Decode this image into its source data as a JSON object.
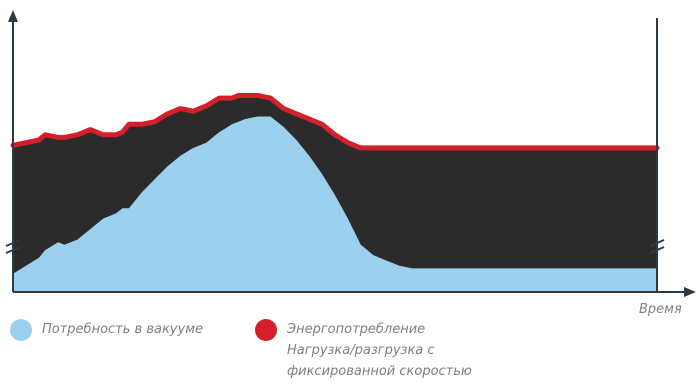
{
  "chart_data": {
    "type": "area",
    "title": "",
    "xlabel": "Время",
    "ylabel": "",
    "x": [
      0,
      2,
      4,
      5,
      7,
      8,
      10,
      12,
      14,
      16,
      17,
      18,
      20,
      22,
      24,
      26,
      28,
      30,
      32,
      34,
      35,
      36,
      38,
      40,
      42,
      44,
      46,
      48,
      50,
      52,
      54,
      56,
      58,
      60,
      62,
      64,
      66,
      68,
      70,
      72,
      74,
      76,
      78,
      80,
      82,
      84,
      86,
      88,
      90,
      92,
      94,
      96,
      98,
      100
    ],
    "xlim": [
      0,
      100
    ],
    "ylim": [
      0,
      100
    ],
    "axis_breaks": true,
    "series": [
      {
        "name": "Энергопотребление",
        "color": "#d3202a",
        "values": [
          56,
          57,
          58,
          60,
          59,
          59,
          60,
          62,
          60,
          60,
          61,
          64,
          64,
          65,
          68,
          70,
          69,
          71,
          74,
          74,
          75,
          75,
          75,
          74,
          70,
          68,
          66,
          64,
          60,
          57,
          55,
          55,
          55,
          55,
          55,
          55,
          55,
          55,
          55,
          55,
          55,
          55,
          55,
          55,
          55,
          55,
          55,
          55,
          55,
          55,
          55,
          55,
          55,
          55
        ]
      },
      {
        "name": "Потребность в вакууме",
        "color": "#9bd1ee",
        "values": [
          7,
          10,
          13,
          16,
          19,
          18,
          20,
          24,
          28,
          30,
          32,
          32,
          38,
          43,
          48,
          52,
          55,
          57,
          61,
          64,
          65,
          66,
          67,
          67,
          63,
          58,
          52,
          45,
          37,
          28,
          18,
          14,
          12,
          10,
          9,
          9,
          9,
          9,
          9,
          9,
          9,
          9,
          9,
          9,
          9,
          9,
          9,
          9,
          9,
          9,
          9,
          9,
          9,
          9
        ]
      }
    ]
  },
  "legend": {
    "demand_label": "Потребность в вакууме",
    "energy_label_1": "Энергопотребление",
    "energy_label_2": "Нагрузка/разгрузка с",
    "energy_label_3": "фиксированной скоростью"
  },
  "colors": {
    "fill_dark": "#2b2b2b",
    "axis": "#2d3b45",
    "demand": "#9bd1ee",
    "energy": "#d3202a"
  }
}
